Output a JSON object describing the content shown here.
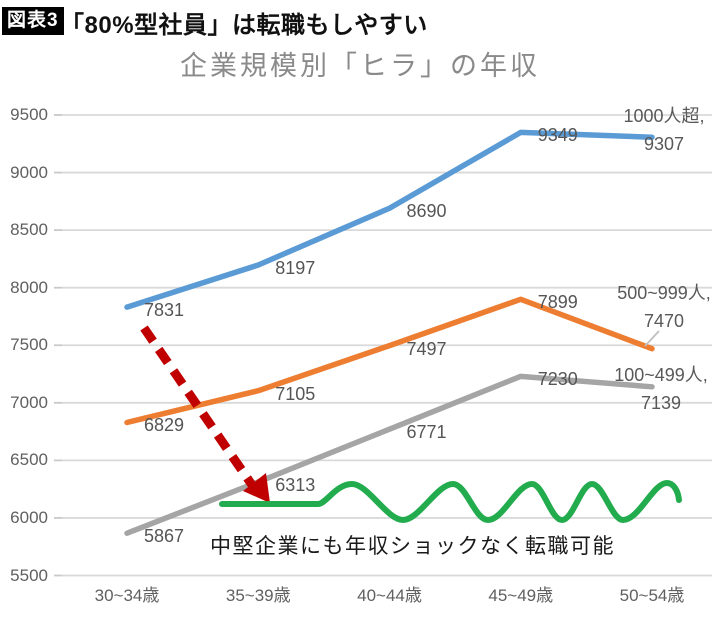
{
  "header": {
    "badge": "図表3",
    "title": "「80%型社員」は転職もしやすい"
  },
  "chart_title": "企業規模別「ヒラ」の年収",
  "annotation": "中堅企業にも年収ショックなく転職可能",
  "colors": {
    "blue": "#5B9BD5",
    "orange": "#ED7D31",
    "gray": "#A5A5A5",
    "green": "#22AC4E",
    "red": "#C00000",
    "grid": "#D9D9D9",
    "leader": "#BFBFBF"
  },
  "chart_data": {
    "type": "line",
    "categories": [
      "30~34歳",
      "35~39歳",
      "40~44歳",
      "45~49歳",
      "50~54歳"
    ],
    "series": [
      {
        "name": "1000人超",
        "color_key": "blue",
        "values": [
          7831,
          8197,
          8690,
          9349,
          9307
        ]
      },
      {
        "name": "500~999人",
        "color_key": "orange",
        "values": [
          6829,
          7105,
          7497,
          7899,
          7470
        ]
      },
      {
        "name": "100~499人",
        "color_key": "gray",
        "values": [
          5867,
          6313,
          6771,
          7230,
          7139
        ]
      }
    ],
    "title": "企業規模別「ヒラ」の年収",
    "xlabel": "",
    "ylabel": "",
    "ylim": [
      5500,
      9500
    ],
    "ytick_step": 500,
    "grid": true,
    "legend_position": "end-of-line",
    "end_label_format": "{name}, {value}"
  }
}
